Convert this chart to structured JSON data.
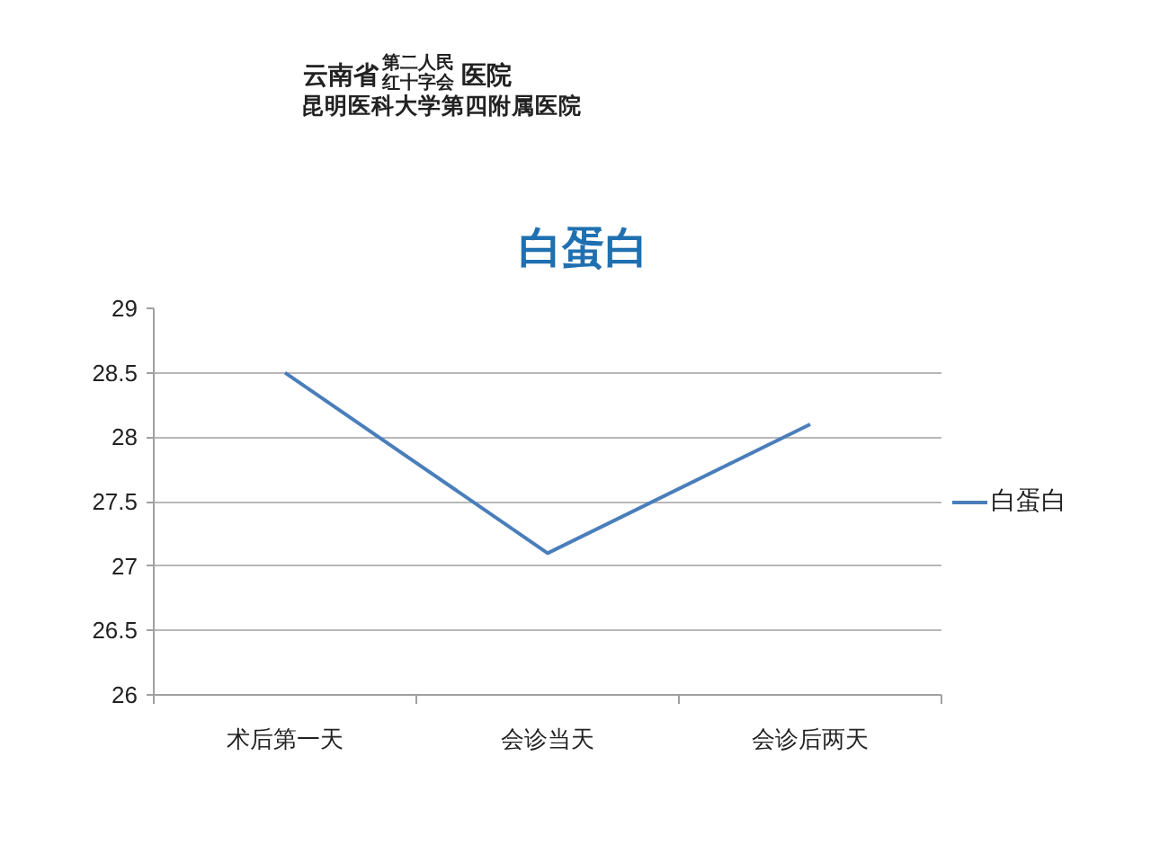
{
  "chart_data": {
    "type": "line",
    "title": "白蛋白",
    "categories": [
      "术后第一天",
      "会诊当天",
      "会诊后两天"
    ],
    "series": [
      {
        "name": "白蛋白",
        "color": "#4a7ebb",
        "values": [
          28.5,
          27.1,
          28.1
        ]
      }
    ],
    "ylim": [
      26,
      29
    ],
    "yticks": [
      26,
      26.5,
      27,
      27.5,
      28,
      28.5,
      29
    ],
    "grid": "y",
    "legend": "right",
    "line_style": "solid",
    "annotations": [
      "云南省",
      "第二人民",
      "红十字会",
      "医院",
      "昆明医科大学第四附属医院"
    ]
  }
}
